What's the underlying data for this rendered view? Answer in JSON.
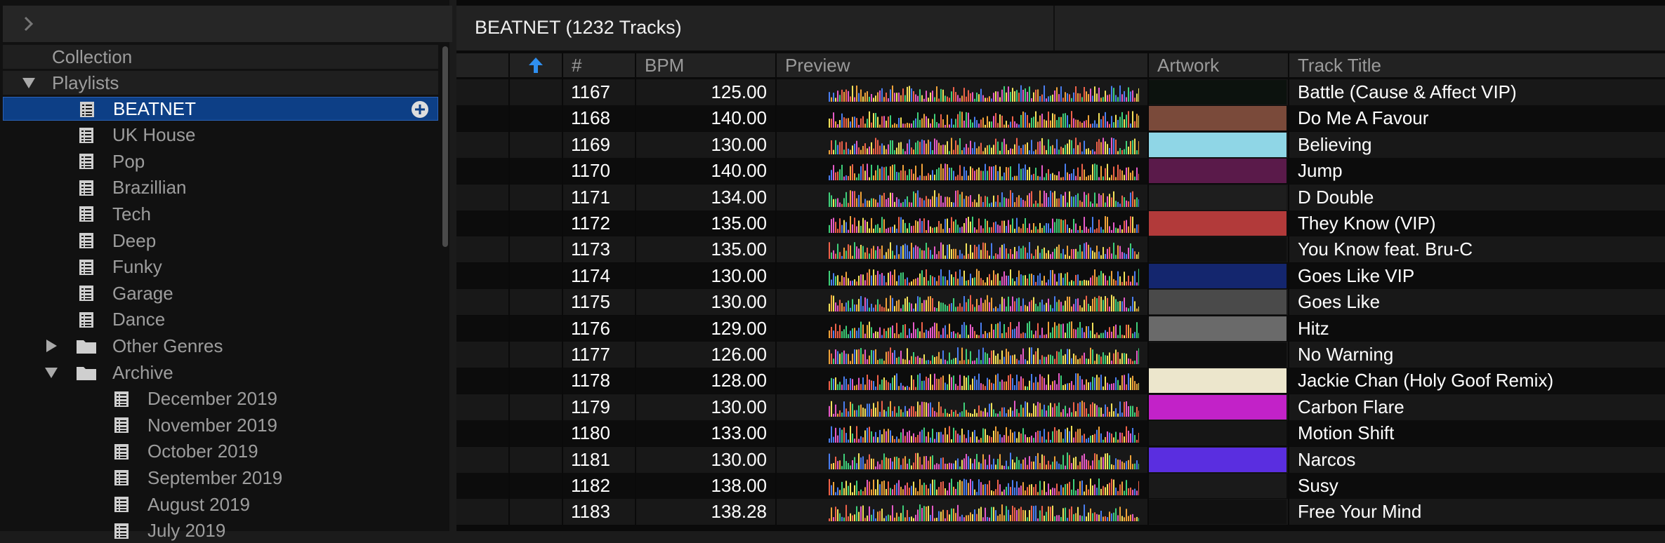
{
  "sidebar": {
    "collection_label": "Collection",
    "playlists_label": "Playlists",
    "playlists": [
      {
        "label": "BEATNET",
        "selected": true
      },
      {
        "label": "UK House"
      },
      {
        "label": "Pop"
      },
      {
        "label": "Brazillian"
      },
      {
        "label": "Tech"
      },
      {
        "label": "Deep"
      },
      {
        "label": "Funky"
      },
      {
        "label": "Garage"
      },
      {
        "label": "Dance"
      }
    ],
    "folders": [
      {
        "label": "Other Genres",
        "expanded": false
      },
      {
        "label": "Archive",
        "expanded": true
      }
    ],
    "archive_items": [
      "December 2019",
      "November 2019",
      "October 2019",
      "September 2019",
      "August 2019",
      "July 2019"
    ]
  },
  "main": {
    "title": "BEATNET (1232 Tracks)",
    "columns": {
      "index": "#",
      "bpm": "BPM",
      "preview": "Preview",
      "artwork": "Artwork",
      "title": "Track Title"
    },
    "tracks": [
      {
        "index": "1167",
        "bpm": "125.00",
        "title": "Battle (Cause & Affect VIP)",
        "art": "#0c120e"
      },
      {
        "index": "1168",
        "bpm": "140.00",
        "title": "Do Me A Favour",
        "art": "#7a4a3a"
      },
      {
        "index": "1169",
        "bpm": "130.00",
        "title": "Believing",
        "art": "#8fd6e6"
      },
      {
        "index": "1170",
        "bpm": "140.00",
        "title": "Jump",
        "art": "#5a1a4a"
      },
      {
        "index": "1171",
        "bpm": "134.00",
        "title": "D Double",
        "art": "#1e1e1e"
      },
      {
        "index": "1172",
        "bpm": "135.00",
        "title": "They Know (VIP)",
        "art": "#b23a3a"
      },
      {
        "index": "1173",
        "bpm": "135.00",
        "title": "You Know feat. Bru-C",
        "art": "#101010"
      },
      {
        "index": "1174",
        "bpm": "130.00",
        "title": "Goes Like VIP",
        "art": "#14266e"
      },
      {
        "index": "1175",
        "bpm": "130.00",
        "title": "Goes Like",
        "art": "#4a4a4a"
      },
      {
        "index": "1176",
        "bpm": "129.00",
        "title": "Hitz",
        "art": "#6a6a6a"
      },
      {
        "index": "1177",
        "bpm": "126.00",
        "title": "No Warning",
        "art": "#0e0e0e"
      },
      {
        "index": "1178",
        "bpm": "128.00",
        "title": "Jackie Chan (Holy Goof Remix)",
        "art": "#ece6cc"
      },
      {
        "index": "1179",
        "bpm": "130.00",
        "title": "Carbon Flare",
        "art": "#c222c8"
      },
      {
        "index": "1180",
        "bpm": "133.00",
        "title": "Motion Shift",
        "art": "#161616"
      },
      {
        "index": "1181",
        "bpm": "130.00",
        "title": "Narcos",
        "art": "#5a2ee0"
      },
      {
        "index": "1182",
        "bpm": "138.00",
        "title": "Susy",
        "art": "#1a1a1a"
      },
      {
        "index": "1183",
        "bpm": "138.28",
        "title": "Free Your Mind",
        "art": "#111111"
      }
    ]
  },
  "colors": {
    "selection": "#0d3f86",
    "sort_arrow": "#2f8ff0",
    "waveform_palette": [
      "#f0624a",
      "#f2a43a",
      "#e85bc8",
      "#4a7ef0",
      "#3fd07a",
      "#f5e35a"
    ]
  }
}
